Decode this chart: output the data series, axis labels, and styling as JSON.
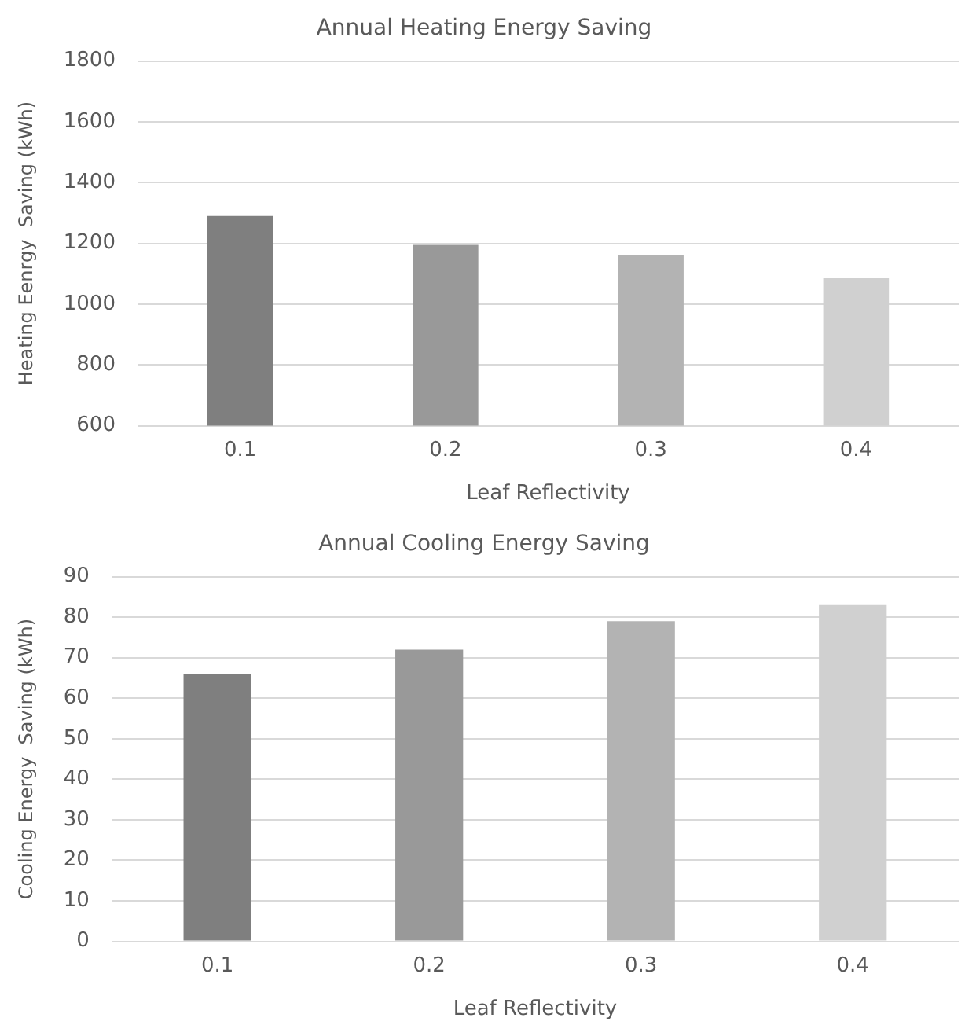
{
  "chart_data": [
    {
      "type": "bar",
      "title": "Annual Heating Energy Saving",
      "xlabel": "Leaf Reflectivity",
      "ylabel": "Heating Eenrgy  Saving (kWh)",
      "categories": [
        "0.1",
        "0.2",
        "0.3",
        "0.4"
      ],
      "values": [
        1290,
        1195,
        1160,
        1085
      ],
      "colors": [
        "#7f7f7f",
        "#999999",
        "#b3b3b3",
        "#d0d0d0"
      ],
      "ylim": [
        600,
        1800
      ],
      "yticks": [
        600,
        800,
        1000,
        1200,
        1400,
        1600,
        1800
      ],
      "grid": "y"
    },
    {
      "type": "bar",
      "title": "Annual Cooling Energy Saving",
      "xlabel": "Leaf Reflectivity",
      "ylabel": "Cooling Energy  Saving (kWh)",
      "categories": [
        "0.1",
        "0.2",
        "0.3",
        "0.4"
      ],
      "values": [
        66,
        72,
        79,
        83
      ],
      "colors": [
        "#7f7f7f",
        "#999999",
        "#b3b3b3",
        "#d0d0d0"
      ],
      "ylim": [
        0,
        90
      ],
      "yticks": [
        0,
        10,
        20,
        30,
        40,
        50,
        60,
        70,
        80,
        90
      ],
      "grid": "y"
    }
  ]
}
